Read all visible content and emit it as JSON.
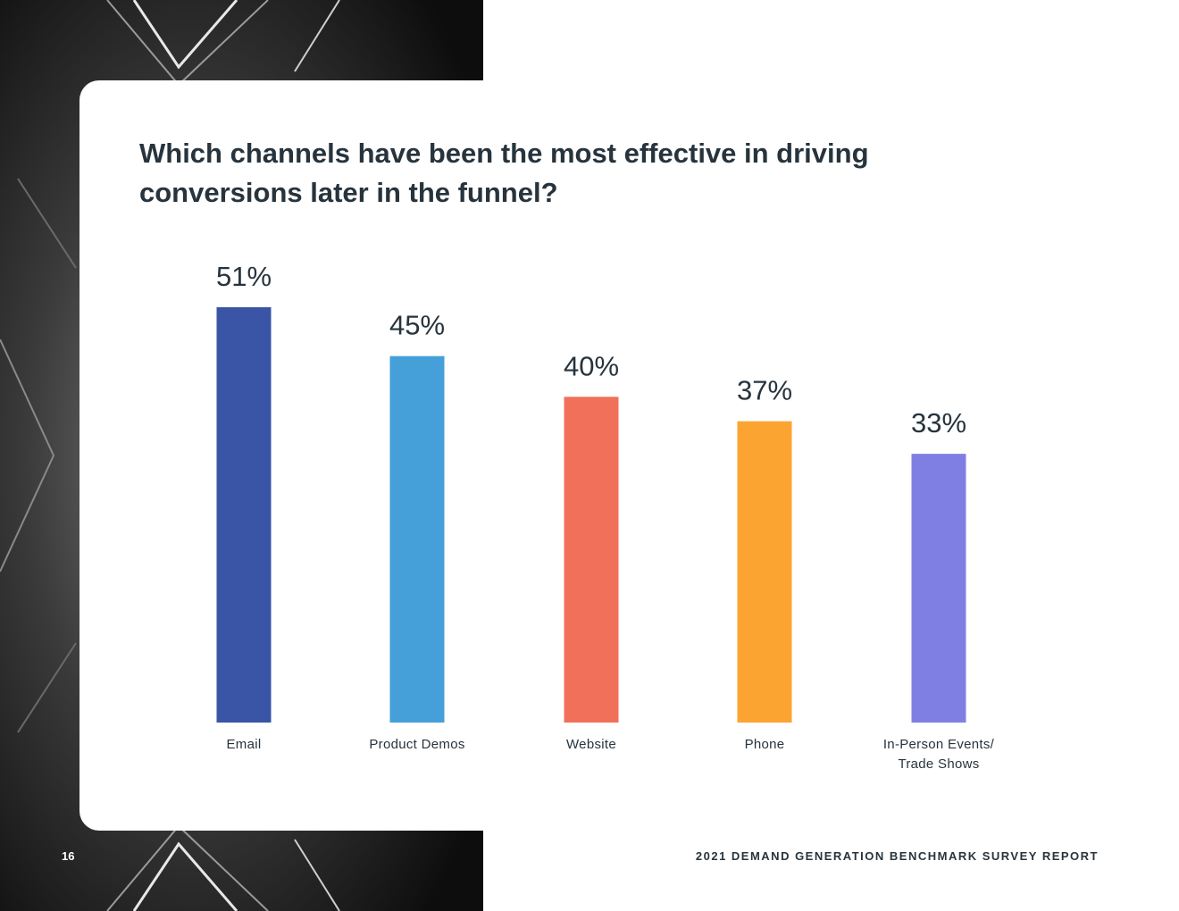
{
  "page": {
    "page_number": "16",
    "footer_text": "2021 DEMAND GENERATION BENCHMARK SURVEY REPORT"
  },
  "colors": {
    "text": "#27343d",
    "background_art": "#1b1b1b"
  },
  "chart_data": {
    "type": "bar",
    "title": "Which channels have been the most effective in driving conversions later in the funnel?",
    "categories": [
      "Email",
      "Product Demos",
      "Website",
      "Phone",
      "In-Person Events/\nTrade Shows"
    ],
    "values": [
      51,
      45,
      40,
      37,
      33
    ],
    "value_labels": [
      "51%",
      "45%",
      "40%",
      "37%",
      "33%"
    ],
    "colors": [
      "#3a55a6",
      "#45a0d9",
      "#f1705a",
      "#fca432",
      "#7f7fe3"
    ],
    "xlabel": "",
    "ylabel": "",
    "ylim": [
      0,
      51
    ],
    "grid": false,
    "legend": "none"
  }
}
